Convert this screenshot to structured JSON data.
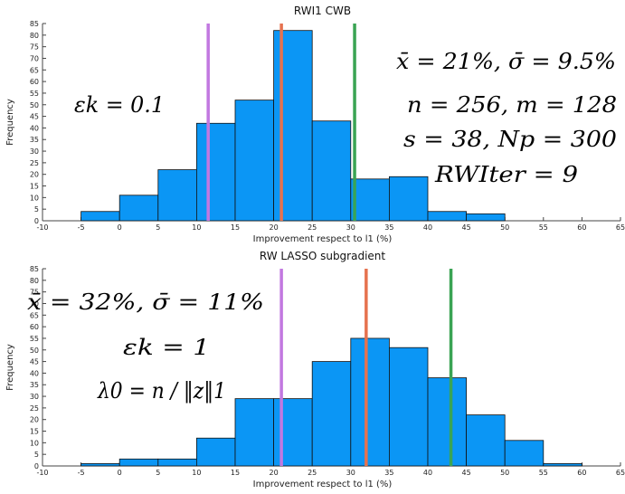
{
  "chart_data": [
    {
      "type": "bar",
      "title": "RWI1 CWB",
      "xlabel": "Improvement respect to l1 (%)",
      "ylabel": "Frequency",
      "xlim": [
        -10,
        65
      ],
      "ylim": [
        0,
        85
      ],
      "xticks": [
        -10,
        -5,
        0,
        5,
        10,
        15,
        20,
        25,
        30,
        35,
        40,
        45,
        50,
        55,
        60,
        65
      ],
      "yticks": [
        0,
        5,
        10,
        15,
        20,
        25,
        30,
        35,
        40,
        45,
        50,
        55,
        60,
        65,
        70,
        75,
        80,
        85
      ],
      "bin_edges": [
        -5,
        0,
        5,
        10,
        15,
        20,
        25,
        30,
        35,
        40,
        45,
        50
      ],
      "values": [
        4,
        11,
        22,
        42,
        52,
        82,
        43,
        18,
        19,
        4,
        3
      ],
      "bar_color": "#0b96f5",
      "vlines": [
        {
          "x": 11.5,
          "color": "#c278e0"
        },
        {
          "x": 21,
          "color": "#e6724f"
        },
        {
          "x": 30.5,
          "color": "#3aa454"
        }
      ],
      "annotations": [
        {
          "text": "x̄ = 21%, σ̄ = 9.5%"
        },
        {
          "text": "εk = 0.1"
        },
        {
          "text": "n = 256, m = 128"
        },
        {
          "text": "s = 38, Np = 300"
        },
        {
          "text": "RWIter = 9"
        }
      ]
    },
    {
      "type": "bar",
      "title": "RW LASSO subgradient",
      "xlabel": "Improvement respect to l1 (%)",
      "ylabel": "Frequency",
      "xlim": [
        -10,
        65
      ],
      "ylim": [
        0,
        85
      ],
      "xticks": [
        -10,
        -5,
        0,
        5,
        10,
        15,
        20,
        25,
        30,
        35,
        40,
        45,
        50,
        55,
        60,
        65
      ],
      "yticks": [
        0,
        5,
        10,
        15,
        20,
        25,
        30,
        35,
        40,
        45,
        50,
        55,
        60,
        65,
        70,
        75,
        80,
        85
      ],
      "bin_edges": [
        -5,
        0,
        5,
        10,
        15,
        20,
        25,
        30,
        35,
        40,
        45,
        50,
        55,
        60
      ],
      "values": [
        1,
        3,
        3,
        12,
        29,
        29,
        45,
        55,
        51,
        38,
        22,
        11,
        1
      ],
      "bar_color": "#0b96f5",
      "vlines": [
        {
          "x": 21,
          "color": "#c278e0"
        },
        {
          "x": 32,
          "color": "#e6724f"
        },
        {
          "x": 43,
          "color": "#3aa454"
        }
      ],
      "annotations": [
        {
          "text": "x̄ = 32%, σ̄ = 11%"
        },
        {
          "text": "εk = 1"
        },
        {
          "text": "λ0 = n / ‖z‖1"
        }
      ]
    }
  ]
}
